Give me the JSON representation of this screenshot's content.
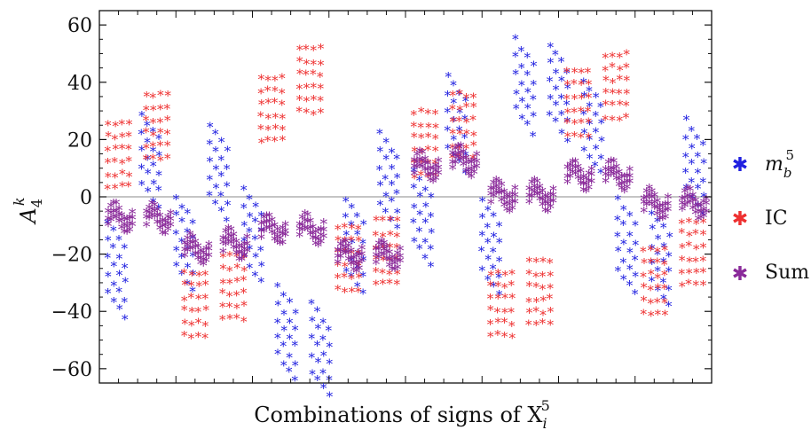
{
  "chart_data": {
    "type": "scatter",
    "xlabel": {
      "text": "Combinations of signs of X",
      "var_sub": "i",
      "var_sup": "5"
    },
    "ylabel": {
      "text": "A",
      "sub": "4",
      "sup": "k"
    },
    "ylim": [
      -65,
      65
    ],
    "yticks": [
      -60,
      -40,
      -20,
      0,
      20,
      40,
      60
    ],
    "ytick_labels": [
      "−60",
      "−40",
      "−20",
      "0",
      "20",
      "40",
      "60"
    ],
    "xlim": [
      0,
      32
    ],
    "n_combinations": 32,
    "zero_line": true,
    "legend_position": "right",
    "series": [
      {
        "name": "m_b^5",
        "legend_text": {
          "base": "m",
          "sub": "b",
          "sup": "5"
        },
        "color": "#2020e0",
        "marker": "*",
        "cluster_centers": [
          -26,
          12,
          -17,
          8,
          -14,
          -48,
          -54,
          -18,
          5,
          -8,
          25,
          -18,
          38,
          36,
          24,
          -18,
          -22,
          10
        ]
      },
      {
        "name": "IC",
        "legend_text": "IC",
        "color": "#ee3030",
        "marker": "*",
        "cluster_centers": [
          14,
          24,
          -38,
          -32,
          30,
          40,
          -22,
          -20,
          18,
          24,
          -38,
          -34,
          32,
          38,
          -30,
          -20
        ]
      },
      {
        "name": "Sum",
        "legend_text": "Sum",
        "color": "#8a2a9a",
        "marker": "*",
        "cluster_centers": [
          -8,
          -8,
          -19,
          -17,
          -12,
          -12,
          -21,
          -21,
          10,
          12,
          0,
          0,
          7,
          7,
          -3,
          -3
        ]
      }
    ]
  }
}
